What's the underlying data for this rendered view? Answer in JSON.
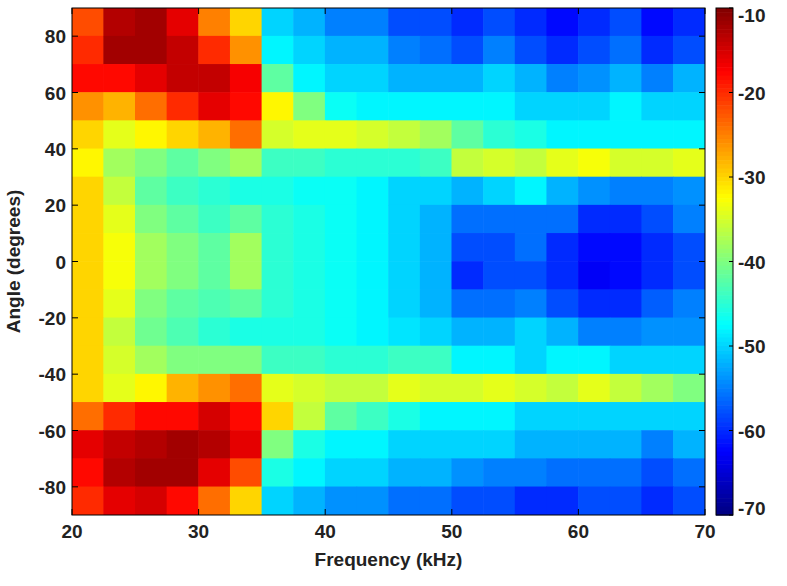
{
  "chart_data": {
    "type": "heatmap",
    "x_label": "Frequency (kHz)",
    "y_label": "Angle (degrees)",
    "xlim": [
      20,
      70
    ],
    "xticks": [
      20,
      30,
      40,
      50,
      60,
      70
    ],
    "ylim": [
      -90,
      90
    ],
    "yticks": [
      -80,
      -60,
      -40,
      -20,
      0,
      20,
      40,
      60,
      80
    ],
    "x": [
      21.25,
      23.75,
      26.25,
      28.75,
      31.25,
      33.75,
      36.25,
      38.75,
      41.25,
      43.75,
      46.25,
      48.75,
      51.25,
      53.75,
      56.25,
      58.75,
      61.25,
      63.75,
      66.25,
      68.75
    ],
    "y": [
      85,
      75,
      65,
      55,
      45,
      35,
      25,
      15,
      5,
      -5,
      -15,
      -25,
      -35,
      -45,
      -55,
      -65,
      -75,
      -85
    ],
    "values": [
      [
        -22,
        -13,
        -12,
        -16,
        -25,
        -30,
        -50,
        -52,
        -55,
        -55,
        -58,
        -58,
        -60,
        -58,
        -60,
        -62,
        -60,
        -58,
        -62,
        -60
      ],
      [
        -20,
        -12,
        -12,
        -14,
        -20,
        -26,
        -48,
        -50,
        -52,
        -52,
        -55,
        -56,
        -58,
        -55,
        -58,
        -60,
        -58,
        -56,
        -60,
        -58
      ],
      [
        -18,
        -18,
        -16,
        -14,
        -14,
        -17,
        -42,
        -48,
        -50,
        -50,
        -52,
        -52,
        -52,
        -50,
        -52,
        -55,
        -54,
        -52,
        -55,
        -52
      ],
      [
        -26,
        -28,
        -24,
        -20,
        -16,
        -18,
        -32,
        -40,
        -47,
        -48,
        -48,
        -48,
        -48,
        -48,
        -50,
        -50,
        -50,
        -48,
        -50,
        -50
      ],
      [
        -30,
        -34,
        -32,
        -30,
        -28,
        -24,
        -35,
        -34,
        -34,
        -35,
        -36,
        -38,
        -42,
        -45,
        -46,
        -48,
        -48,
        -48,
        -48,
        -48
      ],
      [
        -32,
        -38,
        -40,
        -42,
        -40,
        -38,
        -44,
        -44,
        -45,
        -45,
        -45,
        -44,
        -36,
        -35,
        -36,
        -34,
        -33,
        -35,
        -35,
        -34
      ],
      [
        -30,
        -36,
        -42,
        -44,
        -45,
        -46,
        -46,
        -47,
        -47,
        -48,
        -50,
        -50,
        -52,
        -50,
        -48,
        -52,
        -54,
        -55,
        -55,
        -54
      ],
      [
        -30,
        -34,
        -40,
        -42,
        -44,
        -42,
        -45,
        -46,
        -47,
        -48,
        -50,
        -52,
        -56,
        -56,
        -56,
        -56,
        -60,
        -60,
        -58,
        -55
      ],
      [
        -30,
        -33,
        -38,
        -40,
        -42,
        -38,
        -45,
        -46,
        -47,
        -48,
        -50,
        -52,
        -58,
        -58,
        -56,
        -60,
        -62,
        -62,
        -60,
        -58
      ],
      [
        -30,
        -33,
        -38,
        -40,
        -42,
        -38,
        -45,
        -46,
        -47,
        -48,
        -50,
        -52,
        -60,
        -58,
        -58,
        -60,
        -63,
        -62,
        -60,
        -58
      ],
      [
        -30,
        -34,
        -40,
        -42,
        -43,
        -42,
        -45,
        -46,
        -47,
        -48,
        -50,
        -52,
        -56,
        -56,
        -55,
        -58,
        -60,
        -60,
        -57,
        -55
      ],
      [
        -30,
        -36,
        -41,
        -43,
        -45,
        -46,
        -46,
        -46,
        -47,
        -48,
        -49,
        -50,
        -52,
        -52,
        -50,
        -52,
        -55,
        -55,
        -54,
        -54
      ],
      [
        -30,
        -35,
        -38,
        -40,
        -40,
        -40,
        -44,
        -44,
        -45,
        -45,
        -44,
        -44,
        -48,
        -48,
        -50,
        -48,
        -48,
        -50,
        -50,
        -50
      ],
      [
        -30,
        -34,
        -32,
        -28,
        -26,
        -24,
        -34,
        -35,
        -36,
        -36,
        -34,
        -35,
        -35,
        -34,
        -35,
        -36,
        -34,
        -36,
        -38,
        -40
      ],
      [
        -24,
        -20,
        -18,
        -18,
        -15,
        -18,
        -30,
        -36,
        -42,
        -44,
        -46,
        -48,
        -48,
        -48,
        -50,
        -50,
        -50,
        -50,
        -50,
        -50
      ],
      [
        -16,
        -14,
        -13,
        -12,
        -13,
        -16,
        -40,
        -46,
        -48,
        -48,
        -50,
        -50,
        -50,
        -50,
        -52,
        -52,
        -52,
        -52,
        -55,
        -52
      ],
      [
        -18,
        -13,
        -12,
        -12,
        -16,
        -22,
        -46,
        -48,
        -50,
        -50,
        -52,
        -52,
        -54,
        -55,
        -55,
        -56,
        -56,
        -56,
        -58,
        -56
      ],
      [
        -20,
        -16,
        -15,
        -18,
        -24,
        -30,
        -50,
        -52,
        -54,
        -54,
        -56,
        -56,
        -58,
        -58,
        -60,
        -60,
        -58,
        -58,
        -60,
        -58
      ]
    ],
    "zlim": [
      -70,
      -10
    ],
    "zticks": [
      -70,
      -60,
      -50,
      -40,
      -30,
      -20,
      -10
    ]
  }
}
